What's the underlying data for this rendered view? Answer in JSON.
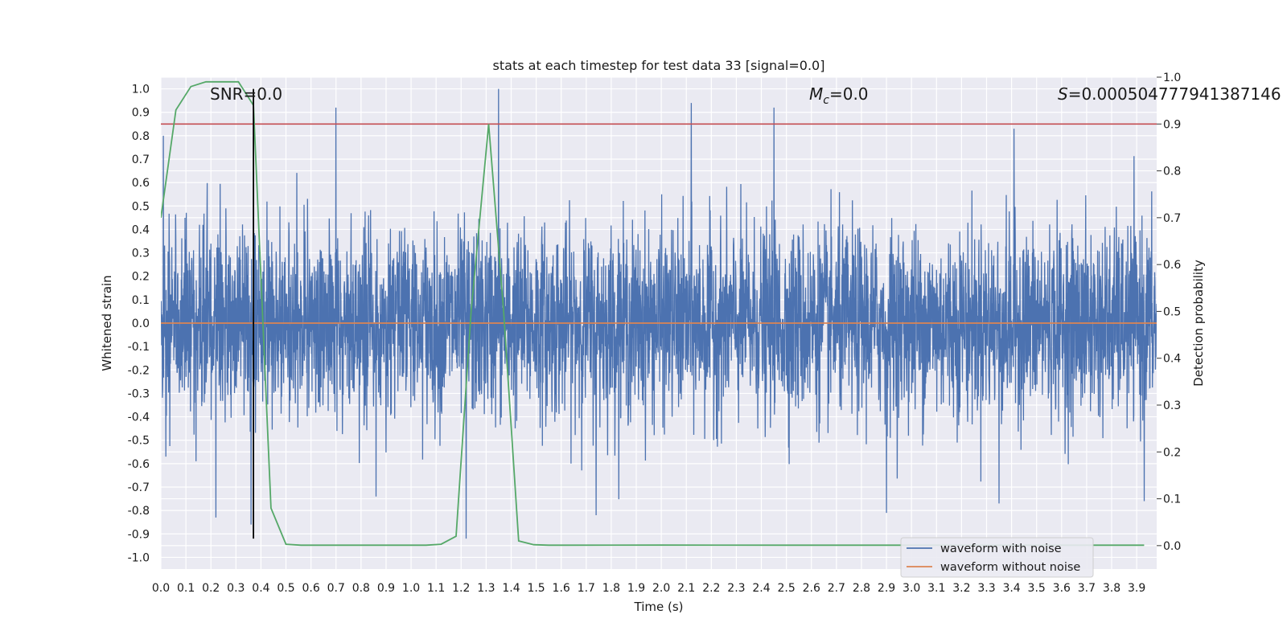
{
  "chart_data": {
    "type": "line",
    "title": "stats at each timestep for test data 33 [signal=0.0]",
    "xlabel": "Time (s)",
    "ylabel": "Whitened strain",
    "y2label": "Detection probability",
    "xlim": [
      0.0,
      3.98
    ],
    "ylim": [
      -1.05,
      1.05
    ],
    "y2lim": [
      -0.05,
      1.0
    ],
    "xticks": [
      0.0,
      0.1,
      0.2,
      0.3,
      0.4,
      0.5,
      0.6,
      0.7,
      0.8,
      0.9,
      1.0,
      1.1,
      1.2,
      1.3,
      1.4,
      1.5,
      1.6,
      1.7,
      1.8,
      1.9,
      2.0,
      2.1,
      2.2,
      2.3,
      2.4,
      2.5,
      2.6,
      2.7,
      2.8,
      2.9,
      3.0,
      3.1,
      3.2,
      3.3,
      3.4,
      3.5,
      3.6,
      3.7,
      3.8,
      3.9
    ],
    "xtick_labels": [
      "0.0",
      "0.1",
      "0.2",
      "0.3",
      "0.4",
      "0.5",
      "0.6",
      "0.7",
      "0.8",
      "0.9",
      "1.0",
      "1.1",
      "1.2",
      "1.3",
      "1.4",
      "1.5",
      "1.6",
      "1.7",
      "1.8",
      "1.9",
      "2.0",
      "2.1",
      "2.2",
      "2.3",
      "2.4",
      "2.5",
      "2.6",
      "2.7",
      "2.8",
      "2.9",
      "3.0",
      "3.1",
      "3.2",
      "3.3",
      "3.4",
      "3.5",
      "3.6",
      "3.7",
      "3.8",
      "3.9"
    ],
    "yticks": [
      1.0,
      0.9,
      0.8,
      0.7,
      0.6,
      0.5,
      0.4,
      0.3,
      0.2,
      0.1,
      0.0,
      -0.1,
      -0.2,
      -0.3,
      -0.4,
      -0.5,
      -0.6,
      -0.7,
      -0.8,
      -0.9,
      -1.0
    ],
    "ytick_labels": [
      "1.0",
      "0.9",
      "0.8",
      "0.7",
      "0.6",
      "0.5",
      "0.4",
      "0.3",
      "0.2",
      "0.1",
      "0.0",
      "-0.1",
      "-0.2",
      "-0.3",
      "-0.4",
      "-0.5",
      "-0.6",
      "-0.7",
      "-0.8",
      "-0.9",
      "-1.0"
    ],
    "y2ticks": [
      1.0,
      0.9,
      0.8,
      0.7,
      0.6,
      0.5,
      0.4,
      0.3,
      0.2,
      0.1,
      0.0
    ],
    "y2tick_labels": [
      "1.0",
      "0.9",
      "0.8",
      "0.7",
      "0.6",
      "0.5",
      "0.4",
      "0.3",
      "0.2",
      "0.1",
      "0.0"
    ],
    "grid": true,
    "legend_position": "bottom-right",
    "series": [
      {
        "name": "waveform with noise",
        "color": "#4c72b0",
        "axis": "left",
        "description_values": "dense noise trace spanning roughly -0.9 to 1.0",
        "spikes": [
          {
            "x": 0.01,
            "y": 0.8
          },
          {
            "x": 0.02,
            "y": -0.57
          },
          {
            "x": 0.14,
            "y": -0.59
          },
          {
            "x": 0.22,
            "y": -0.83
          },
          {
            "x": 0.36,
            "y": -0.86
          },
          {
            "x": 0.7,
            "y": 0.92
          },
          {
            "x": 0.86,
            "y": -0.74
          },
          {
            "x": 1.22,
            "y": -0.92
          },
          {
            "x": 1.35,
            "y": 1.0
          },
          {
            "x": 1.74,
            "y": -0.82
          },
          {
            "x": 2.12,
            "y": 0.94
          },
          {
            "x": 2.45,
            "y": 0.92
          },
          {
            "x": 2.9,
            "y": -0.81
          },
          {
            "x": 3.35,
            "y": -0.77
          },
          {
            "x": 3.41,
            "y": 0.83
          },
          {
            "x": 3.93,
            "y": -0.76
          }
        ]
      },
      {
        "name": "waveform without noise",
        "color": "#dd8452",
        "axis": "left",
        "x": [
          0.0,
          3.98
        ],
        "y": [
          0.0,
          0.0
        ]
      },
      {
        "name": "",
        "color": "#55a868",
        "axis": "right",
        "x": [
          0.0,
          0.06,
          0.12,
          0.18,
          0.24,
          0.31,
          0.37,
          0.44,
          0.5,
          0.56,
          0.62,
          0.68,
          0.75,
          0.81,
          0.87,
          0.93,
          1.0,
          1.06,
          1.12,
          1.18,
          1.24,
          1.31,
          1.37,
          1.43,
          1.49,
          1.55,
          1.62,
          2.0,
          2.5,
          3.0,
          3.5,
          3.93
        ],
        "y": [
          0.7,
          0.93,
          0.98,
          0.99,
          0.99,
          0.99,
          0.94,
          0.08,
          0.003,
          0.001,
          0.001,
          0.001,
          0.001,
          0.001,
          0.001,
          0.001,
          0.001,
          0.001,
          0.003,
          0.02,
          0.5,
          0.9,
          0.5,
          0.01,
          0.002,
          0.001,
          0.001,
          0.0012,
          0.001,
          0.001,
          0.001,
          0.001
        ]
      }
    ],
    "threshold_line": {
      "axis": "right",
      "y": 0.9,
      "color": "#c44e52"
    },
    "marker_line": {
      "x": 0.37,
      "y_from": -0.92,
      "y_to": 1.0,
      "color": "#000000"
    },
    "annotations": {
      "snr": "SNR=0.0",
      "mc_symbol": "M",
      "mc_sub": "c",
      "mc_value": "=0.0",
      "s_symbol": "S",
      "s_value": "=0.000504777941387146"
    }
  }
}
